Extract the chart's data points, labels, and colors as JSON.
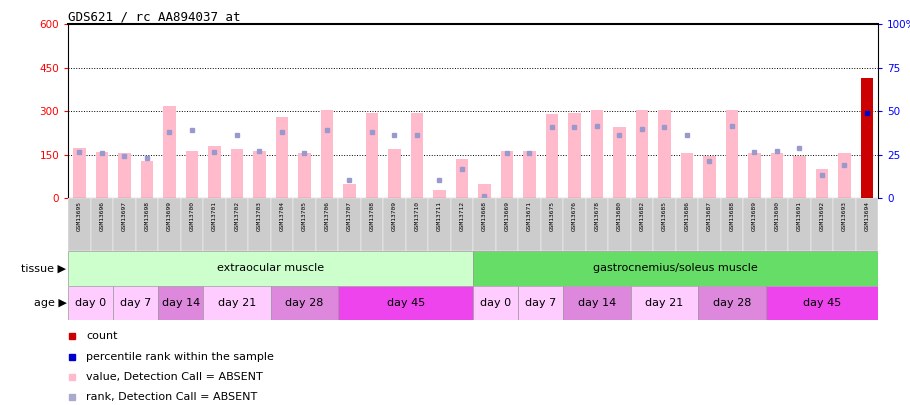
{
  "title": "GDS621 / rc_AA894037_at",
  "samples": [
    "GSM13695",
    "GSM13696",
    "GSM13697",
    "GSM13698",
    "GSM13699",
    "GSM13700",
    "GSM13701",
    "GSM13702",
    "GSM13703",
    "GSM13704",
    "GSM13705",
    "GSM13706",
    "GSM13707",
    "GSM13708",
    "GSM13709",
    "GSM13710",
    "GSM13711",
    "GSM13712",
    "GSM13668",
    "GSM13669",
    "GSM13671",
    "GSM13675",
    "GSM13676",
    "GSM13678",
    "GSM13680",
    "GSM13682",
    "GSM13685",
    "GSM13686",
    "GSM13687",
    "GSM13688",
    "GSM13689",
    "GSM13690",
    "GSM13691",
    "GSM13692",
    "GSM13693",
    "GSM13694"
  ],
  "pink_values": [
    175,
    160,
    155,
    130,
    320,
    165,
    180,
    170,
    165,
    280,
    155,
    305,
    50,
    295,
    170,
    295,
    30,
    135,
    50,
    165,
    165,
    290,
    295,
    305,
    245,
    305,
    305,
    155,
    145,
    305,
    155,
    155,
    145,
    100,
    155,
    415
  ],
  "blue_markers": [
    160,
    155,
    145,
    140,
    230,
    235,
    160,
    220,
    165,
    230,
    155,
    235,
    65,
    230,
    220,
    220,
    65,
    100,
    10,
    155,
    155,
    245,
    245,
    250,
    220,
    240,
    245,
    220,
    130,
    250,
    160,
    165,
    175,
    80,
    115,
    295
  ],
  "pink_color": "#ffbbcc",
  "blue_color": "#9999cc",
  "dark_red": "#cc0000",
  "dark_blue": "#0000cc",
  "left_ylim": [
    0,
    600
  ],
  "left_yticks": [
    0,
    150,
    300,
    450,
    600
  ],
  "right_ylim": [
    0,
    100
  ],
  "right_yticks": [
    0,
    25,
    50,
    75,
    100
  ],
  "grid_values": [
    150,
    300,
    450
  ],
  "tissue_groups": [
    {
      "label": "extraocular muscle",
      "start": 0,
      "end": 17,
      "color": "#ccffcc"
    },
    {
      "label": "gastrocnemius/soleus muscle",
      "start": 18,
      "end": 35,
      "color": "#66dd66"
    }
  ],
  "age_groups": [
    {
      "label": "day 0",
      "start": 0,
      "end": 1,
      "color": "#ffccff"
    },
    {
      "label": "day 7",
      "start": 2,
      "end": 3,
      "color": "#ffccff"
    },
    {
      "label": "day 14",
      "start": 4,
      "end": 5,
      "color": "#dd88dd"
    },
    {
      "label": "day 21",
      "start": 6,
      "end": 8,
      "color": "#ffccff"
    },
    {
      "label": "day 28",
      "start": 9,
      "end": 11,
      "color": "#dd88dd"
    },
    {
      "label": "day 45",
      "start": 12,
      "end": 17,
      "color": "#ee44ee"
    },
    {
      "label": "day 0",
      "start": 18,
      "end": 19,
      "color": "#ffccff"
    },
    {
      "label": "day 7",
      "start": 20,
      "end": 21,
      "color": "#ffccff"
    },
    {
      "label": "day 14",
      "start": 22,
      "end": 24,
      "color": "#dd88dd"
    },
    {
      "label": "day 21",
      "start": 25,
      "end": 27,
      "color": "#ffccff"
    },
    {
      "label": "day 28",
      "start": 28,
      "end": 30,
      "color": "#dd88dd"
    },
    {
      "label": "day 45",
      "start": 31,
      "end": 35,
      "color": "#ee44ee"
    }
  ],
  "legend_items": [
    {
      "color": "#cc0000",
      "label": "count"
    },
    {
      "color": "#0000cc",
      "label": "percentile rank within the sample"
    },
    {
      "color": "#ffbbcc",
      "label": "value, Detection Call = ABSENT"
    },
    {
      "color": "#aaaacc",
      "label": "rank, Detection Call = ABSENT"
    }
  ],
  "xtick_bg": "#cccccc"
}
